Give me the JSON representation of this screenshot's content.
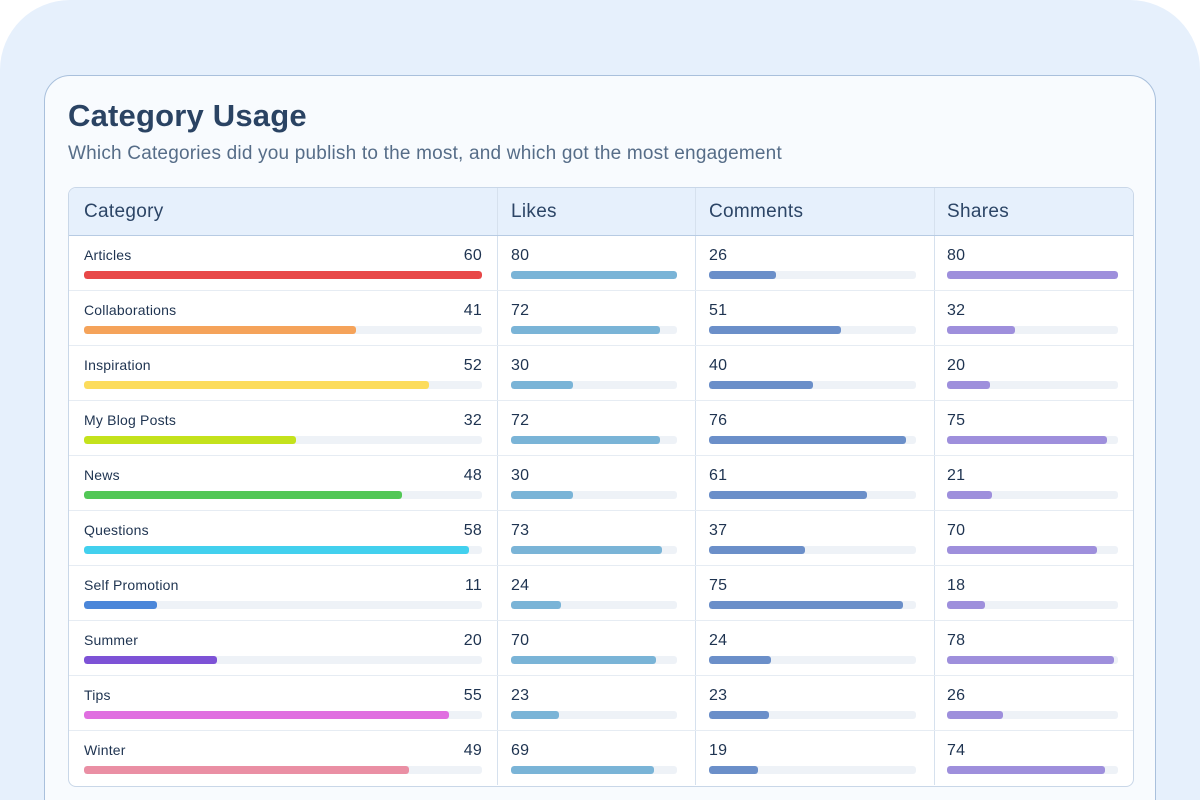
{
  "header": {
    "title": "Category Usage",
    "subtitle": "Which Categories did you publish to the most, and which got the most engagement"
  },
  "table": {
    "columns": [
      "Category",
      "Likes",
      "Comments",
      "Shares"
    ],
    "colors": {
      "likes": "#7ab4d7",
      "comments": "#6b8fc9",
      "shares": "#9e8fdc",
      "track": "#eef2f7"
    },
    "max": {
      "category": 60,
      "likes": 80,
      "comments": 80,
      "shares": 80
    },
    "rows": [
      {
        "category": "Articles",
        "color": "#e84848",
        "posts": 60,
        "likes": 80,
        "comments": 26,
        "shares": 80
      },
      {
        "category": "Collaborations",
        "color": "#f5a35a",
        "posts": 41,
        "likes": 72,
        "comments": 51,
        "shares": 32
      },
      {
        "category": "Inspiration",
        "color": "#fcdc5c",
        "posts": 52,
        "likes": 30,
        "comments": 40,
        "shares": 20
      },
      {
        "category": "My Blog Posts",
        "color": "#c4e21c",
        "posts": 32,
        "likes": 72,
        "comments": 76,
        "shares": 75
      },
      {
        "category": "News",
        "color": "#52c756",
        "posts": 48,
        "likes": 30,
        "comments": 61,
        "shares": 21
      },
      {
        "category": "Questions",
        "color": "#42d0ee",
        "posts": 58,
        "likes": 73,
        "comments": 37,
        "shares": 70
      },
      {
        "category": "Self Promotion",
        "color": "#4a86d9",
        "posts": 11,
        "likes": 24,
        "comments": 75,
        "shares": 18
      },
      {
        "category": "Summer",
        "color": "#7d52d6",
        "posts": 20,
        "likes": 70,
        "comments": 24,
        "shares": 78
      },
      {
        "category": "Tips",
        "color": "#e06ee0",
        "posts": 55,
        "likes": 23,
        "comments": 23,
        "shares": 26
      },
      {
        "category": "Winter",
        "color": "#ea8fa4",
        "posts": 49,
        "likes": 69,
        "comments": 19,
        "shares": 74
      }
    ]
  }
}
